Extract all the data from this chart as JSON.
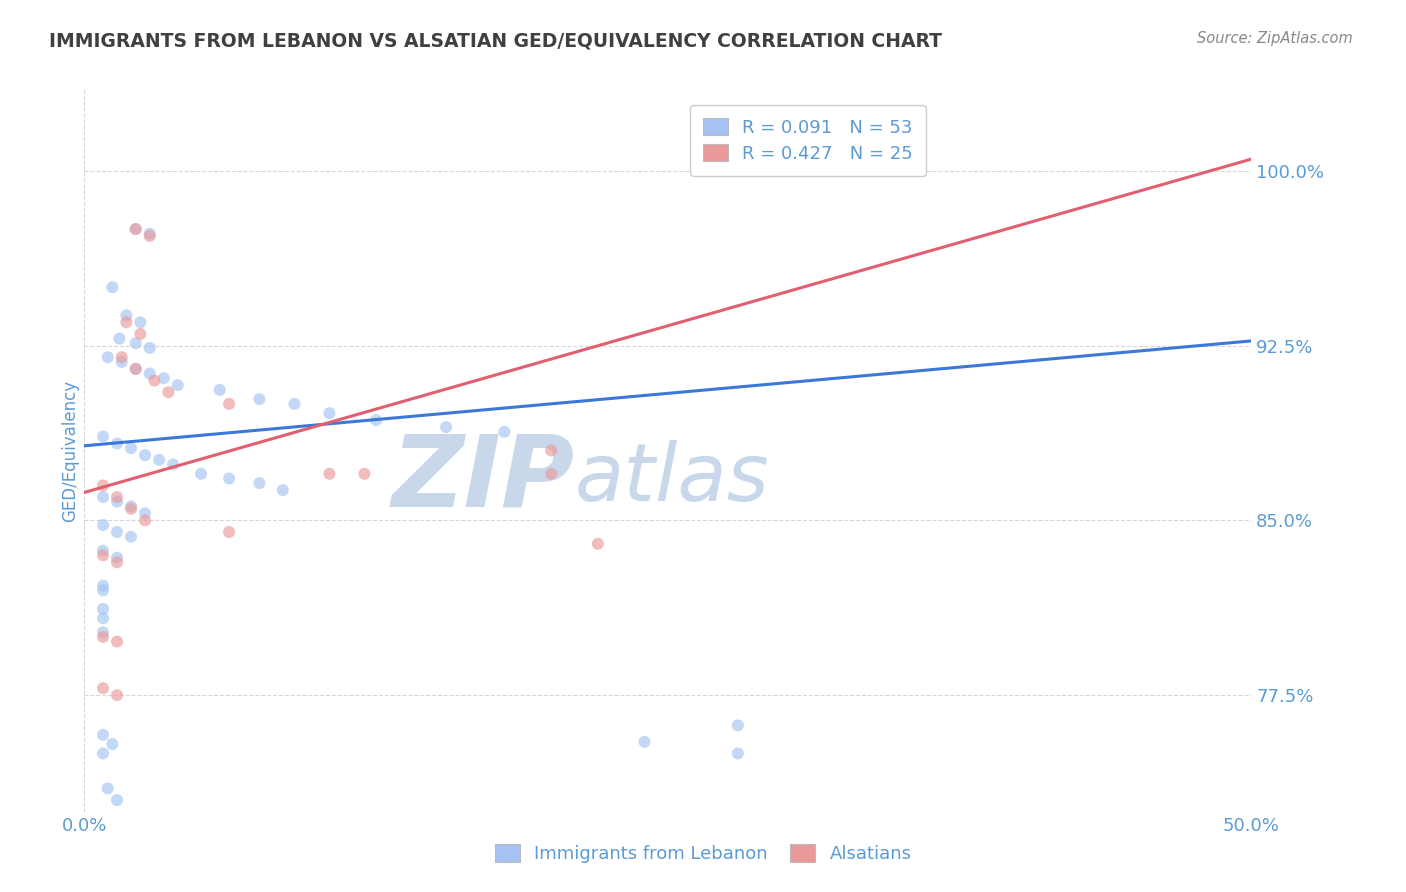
{
  "title": "IMMIGRANTS FROM LEBANON VS ALSATIAN GED/EQUIVALENCY CORRELATION CHART",
  "source_text": "Source: ZipAtlas.com",
  "ylabel": "GED/Equivalency",
  "xlim": [
    0.0,
    0.5
  ],
  "ylim": [
    0.725,
    1.035
  ],
  "ytick_labels": [
    "77.5%",
    "85.0%",
    "92.5%",
    "100.0%"
  ],
  "ytick_values": [
    0.775,
    0.85,
    0.925,
    1.0
  ],
  "xtick_values": [
    0.0,
    0.5
  ],
  "xtick_labels": [
    "0.0%",
    "50.0%"
  ],
  "blue_color": "#a4c2f4",
  "pink_color": "#ea9999",
  "blue_line_color": "#3c78d8",
  "pink_line_color": "#e06070",
  "legend_blue_label": "R = 0.091   N = 53",
  "legend_pink_label": "R = 0.427   N = 25",
  "legend_label_blue": "Immigrants from Lebanon",
  "legend_label_pink": "Alsatians",
  "blue_dots": [
    [
      0.022,
      0.975
    ],
    [
      0.028,
      0.973
    ],
    [
      0.012,
      0.95
    ],
    [
      0.018,
      0.938
    ],
    [
      0.024,
      0.935
    ],
    [
      0.015,
      0.928
    ],
    [
      0.022,
      0.926
    ],
    [
      0.028,
      0.924
    ],
    [
      0.01,
      0.92
    ],
    [
      0.016,
      0.918
    ],
    [
      0.022,
      0.915
    ],
    [
      0.028,
      0.913
    ],
    [
      0.034,
      0.911
    ],
    [
      0.04,
      0.908
    ],
    [
      0.058,
      0.906
    ],
    [
      0.075,
      0.902
    ],
    [
      0.09,
      0.9
    ],
    [
      0.105,
      0.896
    ],
    [
      0.125,
      0.893
    ],
    [
      0.155,
      0.89
    ],
    [
      0.18,
      0.888
    ],
    [
      0.008,
      0.886
    ],
    [
      0.014,
      0.883
    ],
    [
      0.02,
      0.881
    ],
    [
      0.026,
      0.878
    ],
    [
      0.032,
      0.876
    ],
    [
      0.038,
      0.874
    ],
    [
      0.05,
      0.87
    ],
    [
      0.062,
      0.868
    ],
    [
      0.075,
      0.866
    ],
    [
      0.085,
      0.863
    ],
    [
      0.008,
      0.86
    ],
    [
      0.014,
      0.858
    ],
    [
      0.02,
      0.856
    ],
    [
      0.026,
      0.853
    ],
    [
      0.008,
      0.848
    ],
    [
      0.014,
      0.845
    ],
    [
      0.02,
      0.843
    ],
    [
      0.008,
      0.837
    ],
    [
      0.014,
      0.834
    ],
    [
      0.008,
      0.822
    ],
    [
      0.008,
      0.812
    ],
    [
      0.008,
      0.802
    ],
    [
      0.008,
      0.758
    ],
    [
      0.012,
      0.754
    ],
    [
      0.01,
      0.735
    ],
    [
      0.24,
      0.755
    ],
    [
      0.008,
      0.75
    ],
    [
      0.008,
      0.82
    ],
    [
      0.008,
      0.808
    ],
    [
      0.28,
      0.762
    ],
    [
      0.014,
      0.73
    ],
    [
      0.28,
      0.75
    ]
  ],
  "pink_dots": [
    [
      0.022,
      0.975
    ],
    [
      0.028,
      0.972
    ],
    [
      0.018,
      0.935
    ],
    [
      0.024,
      0.93
    ],
    [
      0.016,
      0.92
    ],
    [
      0.022,
      0.915
    ],
    [
      0.03,
      0.91
    ],
    [
      0.036,
      0.905
    ],
    [
      0.062,
      0.9
    ],
    [
      0.2,
      0.88
    ],
    [
      0.105,
      0.87
    ],
    [
      0.12,
      0.87
    ],
    [
      0.2,
      0.87
    ],
    [
      0.008,
      0.865
    ],
    [
      0.014,
      0.86
    ],
    [
      0.02,
      0.855
    ],
    [
      0.026,
      0.85
    ],
    [
      0.062,
      0.845
    ],
    [
      0.22,
      0.84
    ],
    [
      0.008,
      0.835
    ],
    [
      0.014,
      0.832
    ],
    [
      0.008,
      0.8
    ],
    [
      0.014,
      0.798
    ],
    [
      0.008,
      0.778
    ],
    [
      0.014,
      0.775
    ]
  ],
  "blue_line_x": [
    0.0,
    0.5
  ],
  "blue_line_y": [
    0.882,
    0.927
  ],
  "pink_line_x": [
    0.0,
    0.5
  ],
  "pink_line_y": [
    0.862,
    1.005
  ],
  "grid_color": "#cccccc",
  "watermark_zip": "ZIP",
  "watermark_atlas": "atlas",
  "watermark_color": "#c8d8ea",
  "axis_color": "#5b9bd5",
  "title_color": "#404040",
  "dot_size": 75,
  "dot_alpha": 0.65
}
